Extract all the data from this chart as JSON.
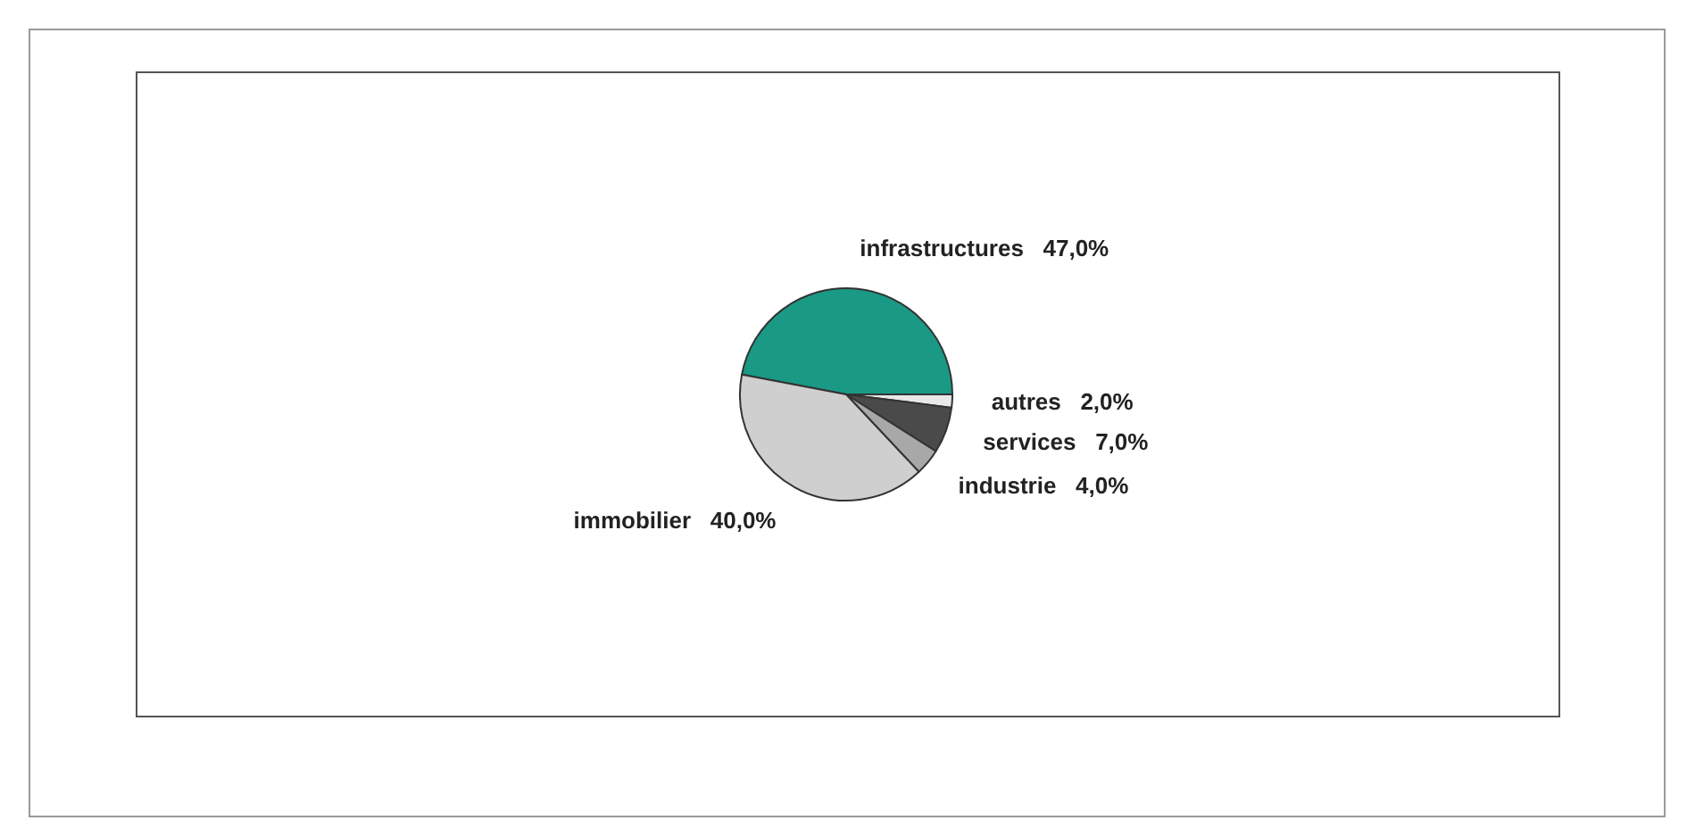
{
  "chart_data": {
    "type": "pie",
    "categories": [
      "infrastructures",
      "autres",
      "services",
      "industrie",
      "immobilier"
    ],
    "values": [
      47,
      2,
      7,
      4,
      40
    ],
    "colors": [
      "#1a9985",
      "#e8e8e8",
      "#4a4a4a",
      "#a8a8a8",
      "#cfcfcf"
    ],
    "value_labels": [
      "47,0%",
      "2,0%",
      "7,0%",
      "4,0%",
      "40,0%"
    ],
    "legend": false
  }
}
